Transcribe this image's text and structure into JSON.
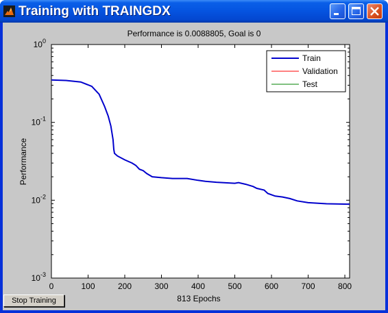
{
  "window": {
    "title": "Training with TRAINGDX",
    "controls": [
      "minimize",
      "maximize",
      "close"
    ]
  },
  "buttons": {
    "stop_training": "Stop Training"
  },
  "chart_data": {
    "type": "line",
    "title": "Performance is 0.0088805, Goal is 0",
    "xlabel": "813 Epochs",
    "ylabel": "Performance",
    "xlim": [
      0,
      813
    ],
    "ylim": [
      0.001,
      1
    ],
    "yscale": "log",
    "x_ticks": [
      "0",
      "100",
      "200",
      "300",
      "400",
      "500",
      "600",
      "700",
      "800"
    ],
    "y_ticks": [
      {
        "base": "10",
        "exp": "-3",
        "value": 0.001
      },
      {
        "base": "10",
        "exp": "-2",
        "value": 0.01
      },
      {
        "base": "10",
        "exp": "-1",
        "value": 0.1
      },
      {
        "base": "10",
        "exp": "0",
        "value": 1
      }
    ],
    "grid": false,
    "legend_position": "top-right",
    "series": [
      {
        "name": "Train",
        "color": "#0000cc",
        "x": [
          0,
          40,
          80,
          110,
          130,
          145,
          155,
          162,
          168,
          170,
          172,
          180,
          200,
          220,
          230,
          240,
          250,
          260,
          275,
          300,
          330,
          370,
          400,
          420,
          450,
          500,
          510,
          530,
          550,
          560,
          580,
          590,
          610,
          630,
          650,
          670,
          700,
          750,
          813
        ],
        "values": [
          0.35,
          0.345,
          0.33,
          0.29,
          0.23,
          0.16,
          0.12,
          0.09,
          0.06,
          0.045,
          0.04,
          0.037,
          0.033,
          0.03,
          0.028,
          0.025,
          0.024,
          0.022,
          0.02,
          0.0195,
          0.019,
          0.019,
          0.018,
          0.0175,
          0.017,
          0.0165,
          0.0168,
          0.016,
          0.015,
          0.0142,
          0.0135,
          0.0122,
          0.0113,
          0.011,
          0.0105,
          0.0098,
          0.0093,
          0.009,
          0.0089
        ]
      },
      {
        "name": "Validation",
        "color": "#ff0000",
        "x": [],
        "values": []
      },
      {
        "name": "Test",
        "color": "#008000",
        "x": [],
        "values": []
      }
    ]
  }
}
